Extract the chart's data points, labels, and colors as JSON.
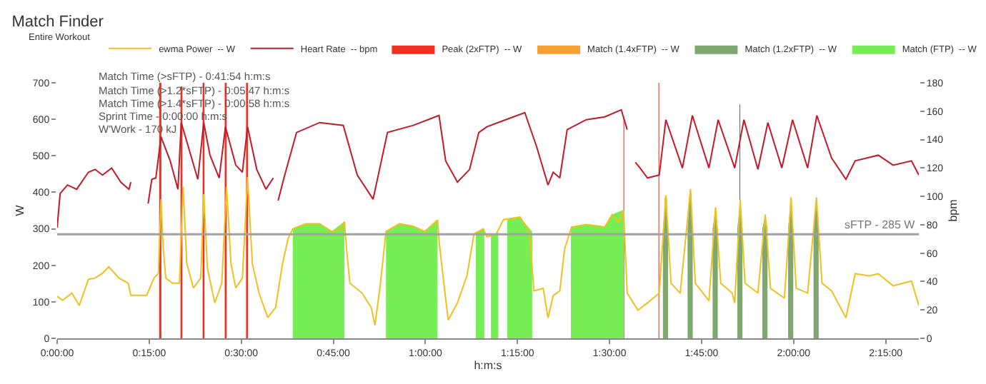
{
  "chart_data": {
    "type": "line",
    "title": "Match Finder",
    "legend_title": "Entire Workout",
    "xlabel": "h:m:s",
    "ylabel": "W",
    "y2label": "bpm",
    "xlim": [
      0,
      2.34
    ],
    "ylim": [
      0,
      700
    ],
    "y2lim": [
      0,
      180
    ],
    "xticks": [
      {
        "value": 0,
        "label": "0:00:00"
      },
      {
        "value": 0.25,
        "label": "0:15:00"
      },
      {
        "value": 0.5,
        "label": "0:30:00"
      },
      {
        "value": 0.75,
        "label": "0:45:00"
      },
      {
        "value": 1,
        "label": "1:00:00"
      },
      {
        "value": 1.25,
        "label": "1:15:00"
      },
      {
        "value": 1.5,
        "label": "1:30:00"
      },
      {
        "value": 1.75,
        "label": "1:45:00"
      },
      {
        "value": 2,
        "label": "2:00:00"
      },
      {
        "value": 2.25,
        "label": "2:15:00"
      }
    ],
    "yticks": [
      0,
      100,
      200,
      300,
      400,
      500,
      600,
      700
    ],
    "y2ticks": [
      0,
      20,
      40,
      60,
      80,
      100,
      120,
      140,
      160,
      180
    ],
    "grid": false,
    "legend": "top",
    "marker": "none",
    "line_style": "solid",
    "ref_lines": [
      {
        "axis": "y",
        "value": 285,
        "label": "sFTP - 285 W",
        "color": "#a0a0a0"
      }
    ],
    "annotations": [
      "Match Time (>sFTP) - 0:41:54 h:m:s",
      "Match Time (>1.2*sFTP) - 0:05:47 h:m:s",
      "Match Time (>1.4*sFTP) - 0:00:58 h:m:s",
      "Sprint Time - 0:00:00 h:m:s",
      "W'Work - 170 kJ"
    ],
    "series": [
      {
        "name": "ewma Power  -- W",
        "color": "#f0c020",
        "x": [
          0,
          0.015,
          0.04,
          0.06,
          0.085,
          0.103,
          0.123,
          0.14,
          0.168,
          0.193,
          0.2,
          0.243,
          0.263,
          0.275,
          0.282,
          0.288,
          0.295,
          0.313,
          0.332,
          0.342,
          0.352,
          0.37,
          0.39,
          0.398,
          0.408,
          0.428,
          0.447,
          0.46,
          0.472,
          0.485,
          0.503,
          0.517,
          0.53,
          0.548,
          0.572,
          0.593,
          0.612,
          0.627,
          0.64,
          0.675,
          0.713,
          0.745,
          0.77,
          0.78,
          0.787,
          0.795,
          0.828,
          0.853,
          0.863,
          0.878,
          0.893,
          0.93,
          0.967,
          0.998,
          1.033,
          1.038,
          1.05,
          1.062,
          1.087,
          1.113,
          1.132,
          1.157,
          1.167,
          1.192,
          1.212,
          1.257,
          1.282,
          1.295,
          1.32,
          1.333,
          1.347,
          1.365,
          1.378,
          1.397,
          1.437,
          1.487,
          1.507,
          1.525,
          1.538,
          1.548,
          1.577,
          1.603,
          1.635,
          1.653,
          1.667,
          1.692,
          1.72,
          1.733,
          1.77,
          1.788,
          1.802,
          1.833,
          1.84,
          1.855,
          1.868,
          1.903,
          1.923,
          1.937,
          1.975,
          1.993,
          2.007,
          2.038,
          2.062,
          2.077,
          2.103,
          2.142,
          2.167,
          2.205,
          2.23,
          2.27,
          2.32,
          2.34
        ],
        "values": [
          115,
          104,
          124,
          90,
          162,
          165,
          178,
          196,
          165,
          151,
          118,
          118,
          165,
          178,
          381,
          246,
          165,
          151,
          151,
          415,
          205,
          138,
          165,
          395,
          192,
          97,
          151,
          415,
          205,
          138,
          165,
          442,
          205,
          124,
          57,
          84,
          205,
          273,
          300,
          314,
          314,
          293,
          300,
          320,
          232,
          151,
          124,
          84,
          36,
          151,
          293,
          314,
          307,
          293,
          324,
          259,
          151,
          50,
          97,
          172,
          286,
          300,
          278,
          285,
          325,
          332,
          292,
          130,
          137,
          56,
          117,
          130,
          245,
          305,
          312,
          305,
          339,
          319,
          352,
          124,
          77,
          97,
          124,
          392,
          151,
          124,
          409,
          151,
          103,
          359,
          151,
          124,
          97,
          379,
          151,
          124,
          339,
          137,
          110,
          386,
          137,
          124,
          386,
          151,
          130,
          56,
          177,
          171,
          177,
          144,
          157,
          90
        ]
      },
      {
        "name": "Heart Rate  -- bpm",
        "axis": "y2",
        "color": "#c41a28",
        "x": [
          0,
          0.008,
          0.028,
          0.053,
          0.085,
          0.103,
          0.123,
          0.148,
          0.173,
          0.195,
          0.2,
          0.22,
          0.247,
          0.257,
          0.268,
          0.282,
          0.307,
          0.328,
          0.337,
          0.382,
          0.398,
          0.415,
          0.44,
          0.457,
          0.485,
          0.503,
          0.517,
          0.542,
          0.567,
          0.587,
          0.593,
          0.6,
          0.618,
          0.65,
          0.713,
          0.777,
          0.815,
          0.858,
          0.897,
          0.967,
          1.037,
          1.055,
          1.087,
          1.12,
          1.145,
          1.167,
          1.218,
          1.27,
          1.302,
          1.333,
          1.347,
          1.365,
          1.385,
          1.437,
          1.487,
          1.532,
          1.548,
          1.56,
          1.57,
          1.583,
          1.603,
          1.635,
          1.653,
          1.698,
          1.725,
          1.77,
          1.795,
          1.84,
          1.865,
          1.903,
          1.93,
          1.968,
          1.997,
          2.038,
          2.063,
          2.103,
          2.142,
          2.167,
          2.23,
          2.27,
          2.32,
          2.34
        ],
        "values": [
          78,
          102,
          108,
          105,
          117,
          119,
          115,
          120,
          110,
          105,
          110,
          null,
          95,
          112,
          113,
          142,
          125,
          105,
          152,
          112,
          152,
          129,
          113,
          149,
          122,
          117,
          149,
          119,
          105,
          113,
          null,
          97,
          115,
          145,
          152,
          150,
          115,
          98,
          145,
          150,
          157,
          125,
          110,
          119,
          145,
          149,
          154,
          159,
          135,
          108,
          117,
          113,
          147,
          154,
          156,
          161,
          147,
          null,
          124,
          120,
          113,
          115,
          154,
          120,
          157,
          120,
          154,
          120,
          154,
          119,
          152,
          120,
          154,
          120,
          157,
          127,
          112,
          125,
          129,
          122,
          125,
          115
        ]
      },
      {
        "name": "Peak (2xFTP)  -- W",
        "type": "area",
        "color": "#f03020",
        "x": [
          0.277,
          0.283,
          0.285,
          0.335,
          0.34,
          0.342,
          0.395,
          0.4,
          0.402,
          0.455,
          0.46,
          0.462,
          0.513,
          0.518,
          0.52,
          1.538,
          1.54,
          1.542,
          1.633,
          1.635,
          1.637,
          1.853,
          1.855
        ],
        "values": [
          700,
          700,
          null,
          690,
          690,
          null,
          700,
          700,
          null,
          700,
          700,
          null,
          700,
          700,
          null,
          607,
          607,
          null,
          700,
          700,
          null,
          641,
          641
        ]
      },
      {
        "name": "Match (1.4xFTP)  -- W",
        "type": "area",
        "color": "#f5a030",
        "x": [
          1.65,
          1.653,
          1.656,
          1.658,
          1.717,
          1.72,
          1.723
        ],
        "values": [
          385,
          392,
          385,
          null,
          390,
          409,
          390
        ]
      },
      {
        "name": "Match (1.2xFTP)  -- W",
        "type": "area",
        "color": "#7fa870",
        "x": [
          1.645,
          1.653,
          1.659,
          1.662,
          1.712,
          1.72,
          1.726,
          1.729,
          1.78,
          1.788,
          1.794,
          1.797,
          1.847,
          1.855,
          1.861,
          1.864,
          1.915,
          1.923,
          1.929,
          1.932,
          1.985,
          1.993,
          1.999,
          2.002,
          2.054,
          2.062,
          2.068
        ],
        "values": [
          300,
          392,
          300,
          null,
          300,
          409,
          300,
          null,
          300,
          359,
          300,
          null,
          300,
          379,
          300,
          null,
          300,
          339,
          300,
          null,
          300,
          386,
          300,
          null,
          300,
          386,
          300
        ]
      },
      {
        "name": "Match (FTP)  -- W",
        "type": "area",
        "color": "#77ee55",
        "x": [
          0.64,
          0.675,
          0.713,
          0.745,
          0.78,
          0.783,
          0.893,
          0.93,
          0.967,
          0.998,
          1.033,
          1.036,
          1.137,
          1.16,
          1.165,
          1.178,
          1.198,
          1.205,
          1.222,
          1.257,
          1.29,
          1.3,
          1.395,
          1.437,
          1.487,
          1.507,
          1.538
        ],
        "values": [
          300,
          314,
          314,
          293,
          320,
          null,
          293,
          314,
          307,
          293,
          324,
          null,
          290,
          300,
          null,
          280,
          290,
          null,
          325,
          332,
          292,
          null,
          305,
          312,
          305,
          339,
          352
        ]
      }
    ]
  }
}
